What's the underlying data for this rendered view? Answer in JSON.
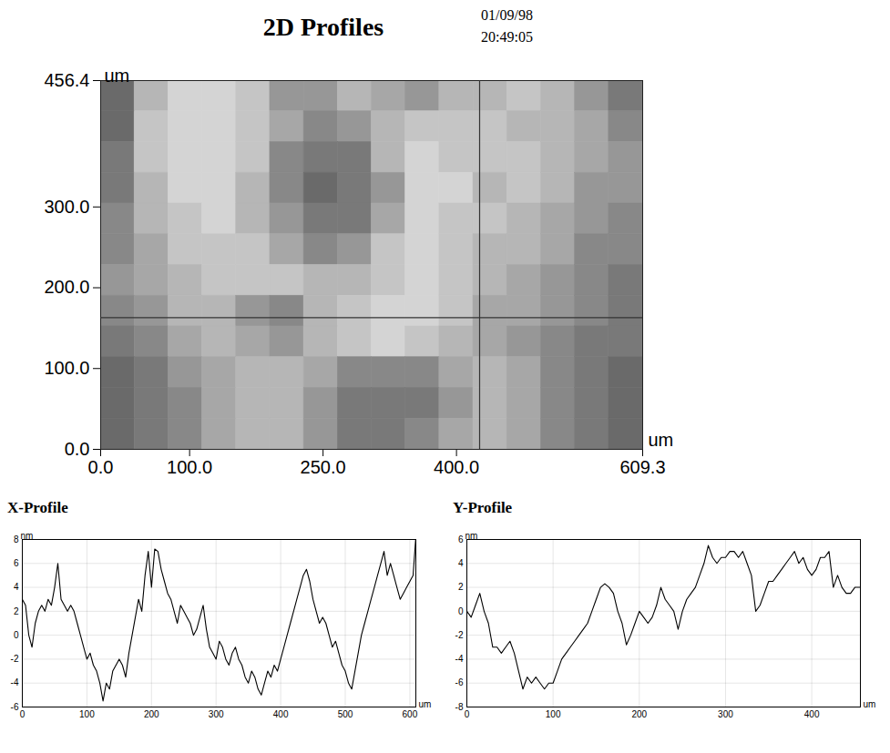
{
  "chart_data": [
    {
      "type": "heatmap",
      "title": "2D Profiles",
      "annotations": [
        "01/09/98",
        "20:49:05"
      ],
      "x_label": "um",
      "y_label": "um",
      "xlim": [
        0,
        609.3
      ],
      "ylim": [
        0,
        456.4
      ],
      "xticks": [
        {
          "value": 0,
          "label": "0.0"
        },
        {
          "value": 100,
          "label": "100.0"
        },
        {
          "value": 250,
          "label": "250.0"
        },
        {
          "value": 400,
          "label": "400.0"
        },
        {
          "value": 609.3,
          "label": "609.3"
        }
      ],
      "yticks": [
        {
          "value": 0,
          "label": "0.0"
        },
        {
          "value": 100,
          "label": "100.0"
        },
        {
          "value": 200,
          "label": "200.0"
        },
        {
          "value": 300,
          "label": "300.0"
        },
        {
          "value": 456.4,
          "label": "456.4"
        }
      ],
      "cursor": {
        "x": 426,
        "y": 163
      },
      "cells": [
        [
          -4,
          1,
          3,
          3,
          2,
          -1,
          -1,
          1,
          0,
          -1,
          1,
          1,
          2,
          1,
          -1,
          -3
        ],
        [
          -4,
          2,
          3,
          3,
          2,
          0,
          -2,
          -1,
          1,
          2,
          2,
          2,
          1,
          1,
          0,
          -2
        ],
        [
          -3,
          2,
          3,
          3,
          2,
          -2,
          -3,
          -3,
          1,
          3,
          2,
          2,
          2,
          1,
          0,
          -1
        ],
        [
          -3,
          1,
          3,
          3,
          1,
          -2,
          -4,
          -3,
          -1,
          3,
          3,
          1,
          2,
          1,
          -1,
          -1
        ],
        [
          -2,
          1,
          2,
          3,
          1,
          -1,
          -3,
          -3,
          0,
          3,
          2,
          2,
          1,
          0,
          -1,
          -2
        ],
        [
          -2,
          0,
          2,
          2,
          2,
          0,
          -2,
          -1,
          2,
          3,
          2,
          1,
          1,
          0,
          -2,
          -2
        ],
        [
          -1,
          0,
          1,
          2,
          2,
          2,
          1,
          1,
          2,
          3,
          2,
          1,
          0,
          -1,
          -2,
          -3
        ],
        [
          -2,
          -1,
          1,
          1,
          -1,
          -2,
          1,
          2,
          3,
          3,
          2,
          0,
          0,
          -1,
          -2,
          -3
        ],
        [
          -3,
          -2,
          0,
          1,
          0,
          -1,
          1,
          2,
          3,
          2,
          1,
          0,
          -1,
          -2,
          -3,
          -3
        ],
        [
          -4,
          -3,
          -1,
          0,
          1,
          1,
          0,
          -2,
          -2,
          -2,
          0,
          1,
          0,
          -2,
          -3,
          -4
        ],
        [
          -4,
          -3,
          -2,
          0,
          1,
          1,
          -1,
          -3,
          -3,
          -3,
          -1,
          1,
          0,
          -2,
          -3,
          -4
        ],
        [
          -4,
          -3,
          -2,
          0,
          1,
          1,
          -1,
          -3,
          -3,
          -2,
          0,
          1,
          0,
          -2,
          -3,
          -4
        ]
      ]
    },
    {
      "type": "line",
      "title": "X-Profile",
      "x_label": "um",
      "y_label": "nm",
      "color": "#000000",
      "grid": true,
      "xlim": [
        0,
        609.3
      ],
      "ylim": [
        -6,
        8
      ],
      "xticks": [
        0,
        100,
        200,
        300,
        400,
        500,
        600
      ],
      "yticks": [
        -6,
        -4,
        -2,
        0,
        2,
        4,
        6,
        8
      ],
      "x": [
        0,
        5,
        10,
        15,
        20,
        25,
        30,
        35,
        40,
        45,
        50,
        55,
        60,
        65,
        70,
        75,
        80,
        85,
        90,
        95,
        100,
        105,
        110,
        115,
        120,
        125,
        130,
        135,
        140,
        145,
        150,
        155,
        160,
        165,
        170,
        175,
        180,
        185,
        190,
        195,
        200,
        205,
        210,
        215,
        220,
        225,
        230,
        235,
        240,
        245,
        250,
        255,
        260,
        265,
        270,
        275,
        280,
        285,
        290,
        295,
        300,
        305,
        310,
        315,
        320,
        325,
        330,
        335,
        340,
        345,
        350,
        355,
        360,
        365,
        370,
        375,
        380,
        385,
        390,
        395,
        400,
        405,
        410,
        415,
        420,
        425,
        430,
        435,
        440,
        445,
        450,
        455,
        460,
        465,
        470,
        475,
        480,
        485,
        490,
        495,
        500,
        505,
        510,
        515,
        520,
        525,
        530,
        535,
        540,
        545,
        550,
        555,
        560,
        565,
        570,
        575,
        580,
        585,
        590,
        595,
        600,
        605,
        609
      ],
      "values": [
        3,
        2.5,
        0,
        -1,
        1,
        2,
        2.5,
        2,
        3,
        2.5,
        4,
        6,
        3,
        2.5,
        2,
        2.5,
        2,
        1,
        0,
        -1,
        -2,
        -1.5,
        -2.5,
        -3,
        -4,
        -5.5,
        -4,
        -4.5,
        -3,
        -2.5,
        -2,
        -2.5,
        -3.5,
        -1.5,
        0,
        1.5,
        3,
        2,
        5,
        7,
        4,
        7.2,
        7,
        5.5,
        4.5,
        3.5,
        3,
        2,
        1,
        2.5,
        2,
        1.5,
        1,
        0,
        0.5,
        1.5,
        2.5,
        0.5,
        -1,
        -1.5,
        -2,
        -0.5,
        -1,
        -2,
        -2.5,
        -1.5,
        -1,
        -2,
        -2.5,
        -3.5,
        -4,
        -3,
        -3.5,
        -4.5,
        -5,
        -4,
        -3,
        -3.5,
        -2.5,
        -3,
        -2,
        -1,
        0,
        1,
        2,
        3,
        4,
        5,
        5.5,
        4.5,
        3,
        2,
        1,
        1.5,
        1,
        0,
        -1,
        -0.5,
        -1.5,
        -2.5,
        -3,
        -4,
        -4.5,
        -3,
        -1.5,
        0,
        1,
        2,
        3,
        4,
        5,
        6,
        7,
        5,
        6,
        5,
        4,
        3,
        3.5,
        4,
        4.5,
        5,
        8
      ]
    },
    {
      "type": "line",
      "title": "Y-Profile",
      "x_label": "um",
      "y_label": "nm",
      "color": "#000000",
      "grid": true,
      "xlim": [
        0,
        456.4
      ],
      "ylim": [
        -8,
        6
      ],
      "xticks": [
        0,
        100,
        200,
        300,
        400
      ],
      "yticks": [
        -8,
        -6,
        -4,
        -2,
        0,
        2,
        4,
        6
      ],
      "x": [
        0,
        5,
        10,
        15,
        20,
        25,
        30,
        35,
        40,
        45,
        50,
        55,
        60,
        65,
        70,
        75,
        80,
        85,
        90,
        95,
        100,
        105,
        110,
        115,
        120,
        125,
        130,
        135,
        140,
        145,
        150,
        155,
        160,
        165,
        170,
        175,
        180,
        185,
        190,
        195,
        200,
        205,
        210,
        215,
        220,
        225,
        230,
        235,
        240,
        245,
        250,
        255,
        260,
        265,
        270,
        275,
        280,
        285,
        290,
        295,
        300,
        305,
        310,
        315,
        320,
        325,
        330,
        335,
        340,
        345,
        350,
        355,
        360,
        365,
        370,
        375,
        380,
        385,
        390,
        395,
        400,
        405,
        410,
        415,
        420,
        425,
        430,
        435,
        440,
        445,
        450,
        456
      ],
      "values": [
        0,
        -0.5,
        0.5,
        1.5,
        0,
        -1,
        -3,
        -3,
        -3.5,
        -3,
        -2.5,
        -3.5,
        -5,
        -6.5,
        -5.5,
        -6,
        -5.5,
        -6,
        -6.5,
        -6,
        -6,
        -5,
        -4,
        -3.5,
        -3,
        -2.5,
        -2,
        -1.5,
        -1,
        0,
        1,
        2,
        2.3,
        2,
        1.5,
        0,
        -1,
        -2.8,
        -2,
        -1,
        0,
        -0.5,
        -1,
        -0.5,
        0.5,
        2,
        1,
        0.5,
        0,
        -1.5,
        0,
        1,
        1.5,
        2,
        3,
        4,
        5.5,
        4.5,
        4,
        4.5,
        4.5,
        5,
        5,
        4.5,
        5,
        4,
        3,
        0,
        0.5,
        1.5,
        2.5,
        2.5,
        3,
        3.5,
        4,
        4.5,
        5,
        4,
        4.5,
        3.5,
        3,
        3.5,
        4.5,
        4.5,
        5,
        2,
        3,
        2,
        1.5,
        1.5,
        2,
        2
      ]
    }
  ]
}
